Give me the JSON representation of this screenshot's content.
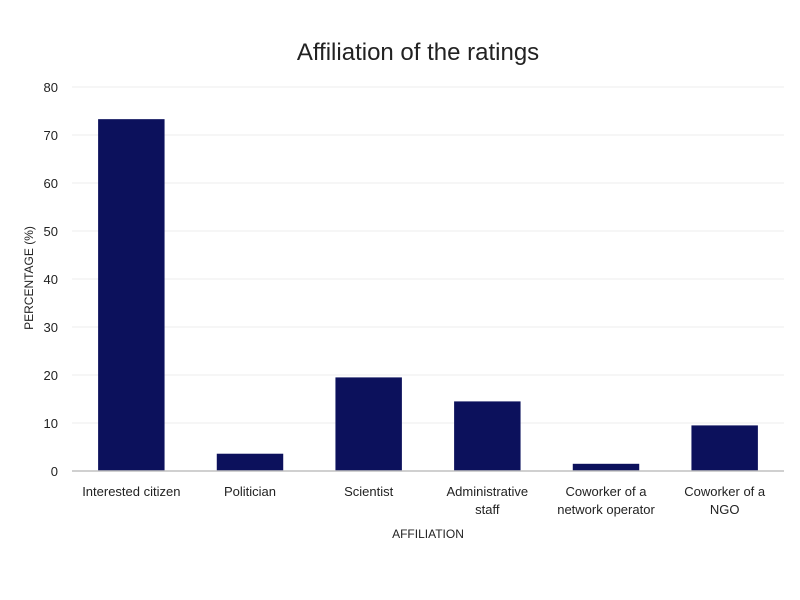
{
  "chart_data": {
    "type": "bar",
    "title": "Affiliation of the ratings",
    "xlabel": "AFFILIATION",
    "ylabel": "PERCENTAGE (%)",
    "ylim": [
      0,
      80
    ],
    "yticks": [
      "0",
      "10",
      "20",
      "30",
      "40",
      "50",
      "60",
      "70",
      "80"
    ],
    "grid": true,
    "categories": [
      [
        "Interested citizen"
      ],
      [
        "Politician"
      ],
      [
        "Scientist"
      ],
      [
        "Administrative",
        "staff"
      ],
      [
        "Coworker of a",
        "network operator"
      ],
      [
        "Coworker of a",
        "NGO"
      ]
    ],
    "values": [
      73.3,
      3.6,
      19.5,
      14.5,
      1.5,
      9.5
    ],
    "colors": {
      "bar": "#0c115c",
      "grid": "#eeeeee",
      "axis": "#c0c0c0"
    }
  }
}
